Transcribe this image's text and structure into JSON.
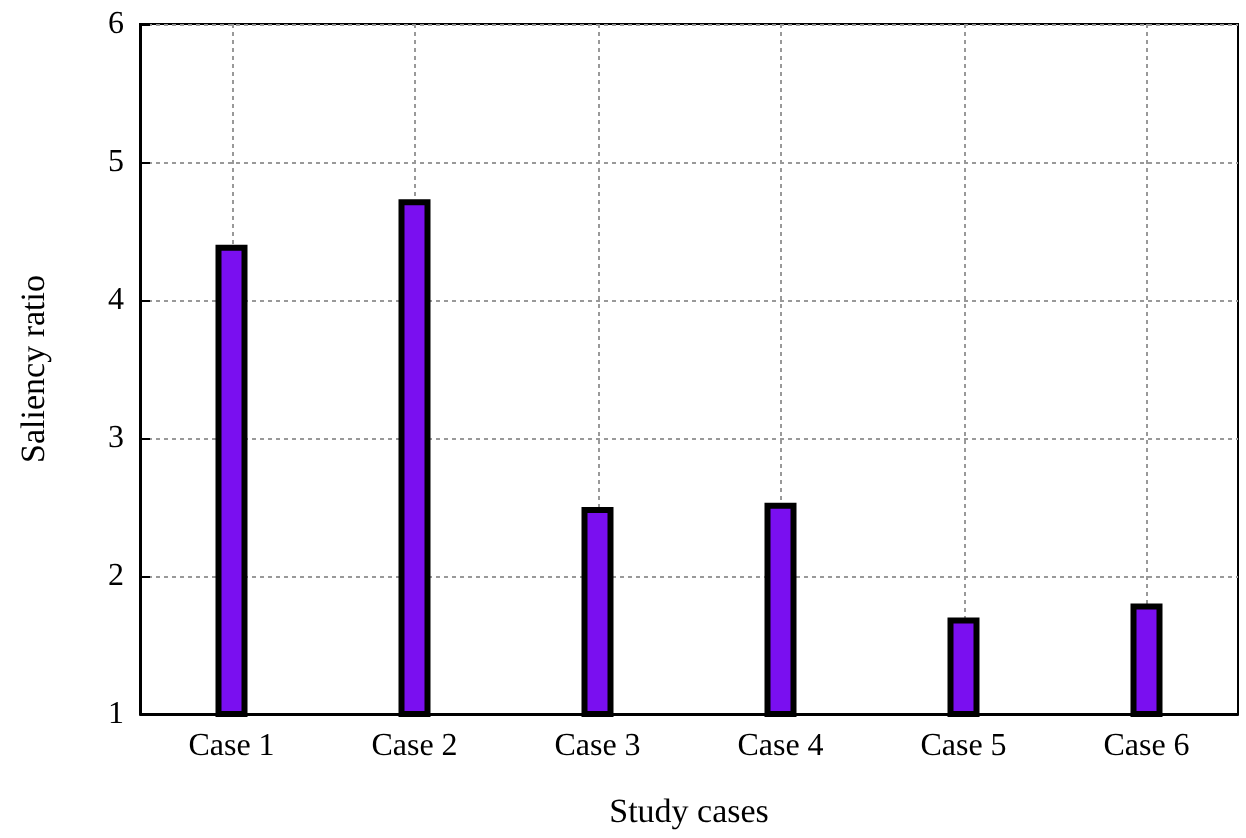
{
  "chart_data": {
    "type": "bar",
    "xlabel": "Study cases",
    "ylabel": "Saliency ratio",
    "categories": [
      "Case 1",
      "Case 2",
      "Case 3",
      "Case 4",
      "Case 5",
      "Case 6"
    ],
    "values": [
      4.4,
      4.73,
      2.5,
      2.53,
      1.7,
      1.8
    ],
    "color": "#7a0ff0",
    "ylim": [
      1,
      6
    ],
    "yticks": [
      1,
      2,
      3,
      4,
      5,
      6
    ],
    "grid": true
  }
}
